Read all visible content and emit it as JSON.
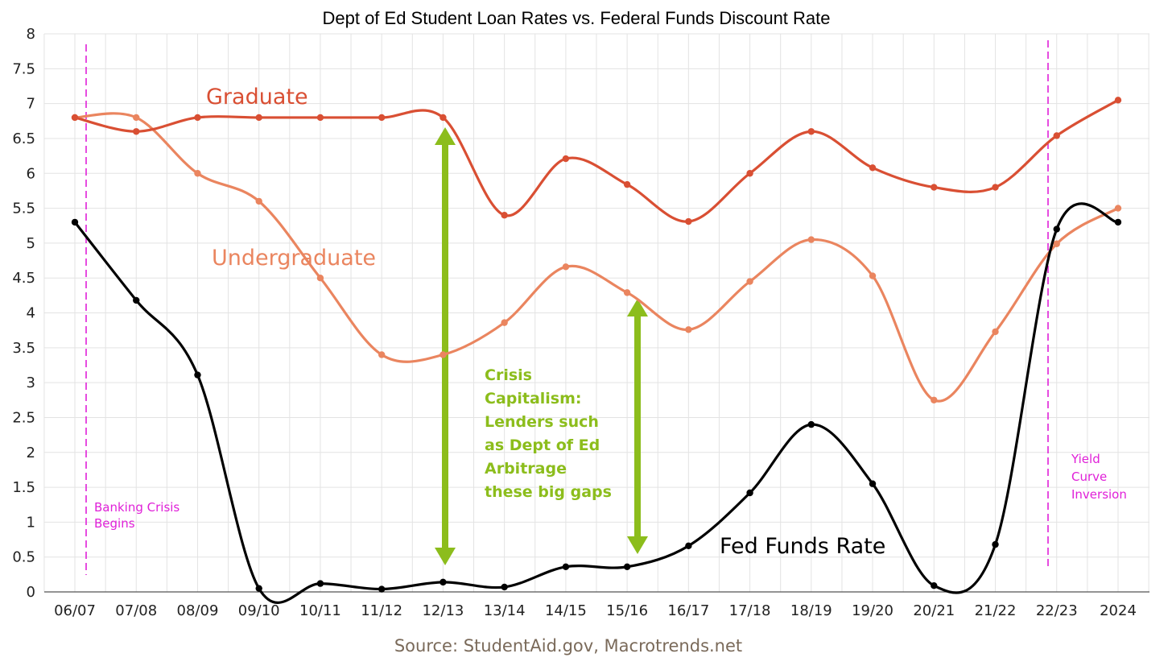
{
  "chart_data": {
    "type": "line",
    "title": "Dept of Ed Student Loan Rates vs. Federal Funds Discount Rate",
    "categories": [
      "06/07",
      "07/08",
      "08/09",
      "09/10",
      "10/11",
      "11/12",
      "12/13",
      "13/14",
      "14/15",
      "15/16",
      "16/17",
      "17/18",
      "18/19",
      "19/20",
      "20/21",
      "21/22",
      "22/23",
      "2024"
    ],
    "ylim": [
      0,
      8
    ],
    "yticks": [
      "0",
      "0.5",
      "1",
      "1.5",
      "2",
      "2.5",
      "3",
      "3.5",
      "4",
      "4.5",
      "5",
      "5.5",
      "6",
      "6.5",
      "7",
      "7.5",
      "8"
    ],
    "grid": true,
    "series": [
      {
        "name": "Graduate",
        "color": "#d94f33",
        "values": [
          6.8,
          6.6,
          6.8,
          6.8,
          6.8,
          6.8,
          6.8,
          5.4,
          6.21,
          5.84,
          5.31,
          6.0,
          6.6,
          6.08,
          5.8,
          5.8,
          6.54,
          7.05
        ]
      },
      {
        "name": "Undergraduate",
        "color": "#ea855f",
        "values": [
          6.8,
          6.8,
          6.0,
          5.6,
          4.5,
          3.4,
          3.4,
          3.86,
          4.66,
          4.29,
          3.76,
          4.45,
          5.05,
          4.53,
          2.75,
          3.73,
          4.99,
          5.5
        ]
      },
      {
        "name": "Fed Funds Rate",
        "color": "#000000",
        "values": [
          5.3,
          4.18,
          3.11,
          0.05,
          0.12,
          0.04,
          0.14,
          0.07,
          0.36,
          0.36,
          0.66,
          1.42,
          2.4,
          1.55,
          0.09,
          0.68,
          5.2,
          5.3
        ]
      }
    ],
    "annotations": {
      "banking_crisis": [
        "Banking Crisis",
        "Begins"
      ],
      "yield_curve": [
        "Yield",
        "Curve",
        "Inversion"
      ],
      "crisis_capitalism": [
        "Crisis",
        "Capitalism:",
        "Lenders such",
        "as Dept of Ed",
        "Arbitrage",
        "these big gaps"
      ]
    },
    "source": "Source: StudentAid.gov, Macrotrends.net"
  },
  "colors": {
    "graduate": "#d94f33",
    "undergraduate": "#ea855f",
    "fed": "#000000",
    "pink": "#e020d8",
    "green": "#8cbd1c"
  }
}
